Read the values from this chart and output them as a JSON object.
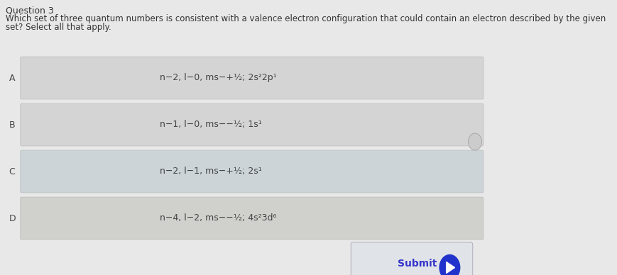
{
  "title": "Question 3",
  "question_line1": "Which set of three quantum numbers is consistent with a valence electron configuration that could contain an electron described by the given",
  "question_line2": "set? Select all that apply.",
  "bg_color": "#e8e8e8",
  "card_color_A": "#d4d4d4",
  "card_color_B": "#d4d4d4",
  "card_color_C": "#ccd4d8",
  "card_color_D": "#d0d0cc",
  "options": [
    {
      "label": "A",
      "text": "n−2, l−0, ms−+½; 2s²2p¹"
    },
    {
      "label": "B",
      "text": "n−1, l−0, ms−−½; 1s¹"
    },
    {
      "label": "C",
      "text": "n−2, l−1, ms−+½; 2s¹"
    },
    {
      "label": "D",
      "text": "n−4, l−2, ms−−½; 4s²3d⁶"
    }
  ],
  "submit_button_bg": "#e0e4e8",
  "submit_text": "Submit",
  "submit_text_color": "#3333cc",
  "title_fontsize": 9,
  "question_fontsize": 8.5,
  "option_fontsize": 9,
  "label_fontsize": 9
}
